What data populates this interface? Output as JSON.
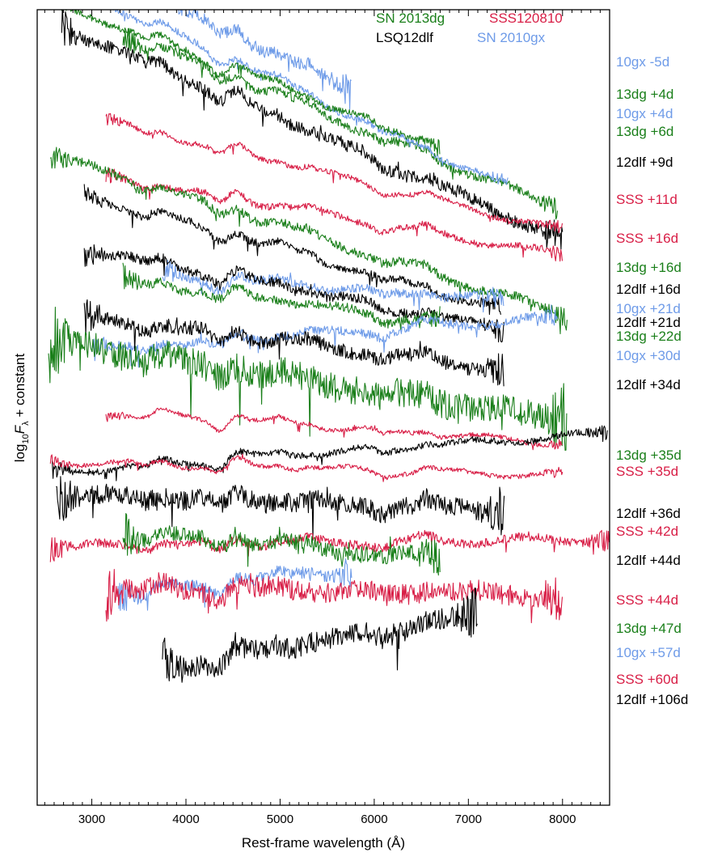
{
  "chart_data": {
    "type": "line",
    "xlabel": "Rest-frame wavelength (Å)",
    "ylabel_main": "log",
    "ylabel_sub": "10",
    "ylabel_var": "F",
    "ylabel_var_sub": "λ",
    "ylabel_rest": " + constant",
    "xlim": [
      2420,
      8500
    ],
    "x_ticks": [
      3000,
      4000,
      5000,
      6000,
      7000,
      8000
    ],
    "grid": false,
    "legend_placement": "top-right",
    "colors": {
      "SN 2013dg": "#1a7f1a",
      "SSS120810": "#d81e46",
      "LSQ12dlf": "#000000",
      "SN 2010gx": "#6e9be8"
    },
    "legend": [
      {
        "name": "SN 2013dg",
        "color": "#1a7f1a"
      },
      {
        "name": "SSS120810",
        "color": "#d81e46"
      },
      {
        "name": "LSQ12dlf",
        "color": "#000000"
      },
      {
        "name": "SN 2010gx",
        "color": "#6e9be8"
      }
    ],
    "series": [
      {
        "label": "10gx -5d",
        "object": "SN 2010gx",
        "x_range": [
          2540,
          5760
        ],
        "offset": 0.0,
        "slope": 0.7,
        "noise": 0.2
      },
      {
        "label": "13dg +4d",
        "object": "SN 2013dg",
        "x_range": [
          3330,
          7950
        ],
        "offset": 0.62,
        "slope": 0.58,
        "noise": 0.14
      },
      {
        "label": "10gx +4d",
        "object": "SN 2010gx",
        "x_range": [
          2620,
          7420
        ],
        "offset": 0.4,
        "slope": 0.67,
        "noise": 0.1
      },
      {
        "label": "13dg +6d",
        "object": "SN 2013dg",
        "x_range": [
          2640,
          6700
        ],
        "offset": 0.47,
        "slope": 0.55,
        "noise": 0.1
      },
      {
        "label": "12dlf +9d",
        "object": "LSQ12dlf",
        "x_range": [
          2680,
          8000
        ],
        "offset": 0.96,
        "slope": 0.62,
        "noise": 0.2
      },
      {
        "label": "SSS +11d",
        "object": "SSS120810",
        "x_range": [
          3150,
          8000
        ],
        "offset": 1.64,
        "slope": 0.35,
        "noise": 0.08
      },
      {
        "label": "SSS +16d",
        "object": "SSS120810",
        "x_range": [
          3150,
          8000
        ],
        "offset": 2.32,
        "slope": 0.25,
        "noise": 0.1
      },
      {
        "label": "13dg +16d",
        "object": "SN 2013dg",
        "x_range": [
          2560,
          8050
        ],
        "offset": 2.62,
        "slope": 0.45,
        "noise": 0.14
      },
      {
        "label": "12dlf +16d",
        "object": "LSQ12dlf",
        "x_range": [
          2920,
          7350
        ],
        "offset": 2.97,
        "slope": 0.4,
        "noise": 0.12
      },
      {
        "label": "10gx +21d",
        "object": "SN 2010gx",
        "x_range": [
          3750,
          7380
        ],
        "offset": 3.52,
        "slope": 0.1,
        "noise": 0.14
      },
      {
        "label": "12dlf +21d",
        "object": "LSQ12dlf",
        "x_range": [
          2920,
          7380
        ],
        "offset": 3.55,
        "slope": 0.28,
        "noise": 0.15
      },
      {
        "label": "13dg +22d",
        "object": "SN 2013dg",
        "x_range": [
          3330,
          6700
        ],
        "offset": 3.78,
        "slope": 0.2,
        "noise": 0.14
      },
      {
        "label": "10gx +30d",
        "object": "SN 2010gx",
        "x_range": [
          3000,
          7950
        ],
        "offset": 4.33,
        "slope": -0.1,
        "noise": 0.14
      },
      {
        "label": "12dlf +34d",
        "object": "LSQ12dlf",
        "x_range": [
          2920,
          7380
        ],
        "offset": 4.4,
        "slope": 0.18,
        "noise": 0.22
      },
      {
        "label": "13dg +35d",
        "object": "SN 2013dg",
        "x_range": [
          2540,
          8050
        ],
        "offset": 4.95,
        "slope": 0.22,
        "noise": 0.45
      },
      {
        "label": "SSS +35d",
        "object": "SSS120810",
        "x_range": [
          3150,
          8000
        ],
        "offset": 5.67,
        "slope": 0.1,
        "noise": 0.07
      },
      {
        "label": "12dlf +36d",
        "object": "LSQ12dlf",
        "x_range": [
          2580,
          8480
        ],
        "offset": 6.17,
        "slope": -0.1,
        "noise": 0.1
      },
      {
        "label": "SSS +42d",
        "object": "SSS120810",
        "x_range": [
          2560,
          8000
        ],
        "offset": 6.35,
        "slope": 0.04,
        "noise": 0.07
      },
      {
        "label": "12dlf +44d",
        "object": "LSQ12dlf",
        "x_range": [
          2620,
          7380
        ],
        "offset": 6.88,
        "slope": 0.05,
        "noise": 0.3
      },
      {
        "label": "SSS +44d",
        "object": "SSS120810",
        "x_range": [
          2560,
          8500
        ],
        "offset": 7.52,
        "slope": -0.02,
        "noise": 0.14
      },
      {
        "label": "13dg +47d",
        "object": "SN 2013dg",
        "x_range": [
          3330,
          6700
        ],
        "offset": 7.55,
        "slope": 0.12,
        "noise": 0.25
      },
      {
        "label": "10gx +57d",
        "object": "SN 2010gx",
        "x_range": [
          3280,
          5760
        ],
        "offset": 8.05,
        "slope": -0.15,
        "noise": 0.18
      },
      {
        "label": "SSS +60d",
        "object": "SSS120810",
        "x_range": [
          3150,
          8000
        ],
        "offset": 8.25,
        "slope": 0.02,
        "noise": 0.32
      },
      {
        "label": "12dlf +106d",
        "object": "LSQ12dlf",
        "x_range": [
          3750,
          7100
        ],
        "offset": 9.15,
        "slope": -0.25,
        "noise": 0.32
      }
    ]
  }
}
